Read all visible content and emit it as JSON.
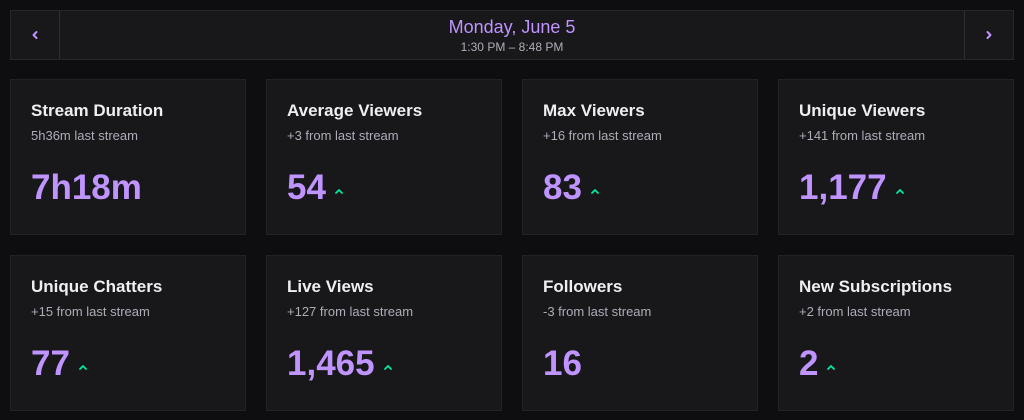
{
  "date_nav": {
    "title": "Monday, June 5",
    "time_range": "1:30 PM – 8:48 PM"
  },
  "colors": {
    "accent": "#bf94ff",
    "trend_up": "#00e8a2",
    "card_bg": "#18181b",
    "page_bg": "#0e0e10"
  },
  "cards": [
    {
      "title": "Stream Duration",
      "subtitle": "5h36m last stream",
      "value": "7h18m",
      "trend": "none"
    },
    {
      "title": "Average Viewers",
      "subtitle": "+3 from last stream",
      "value": "54",
      "trend": "up"
    },
    {
      "title": "Max Viewers",
      "subtitle": "+16 from last stream",
      "value": "83",
      "trend": "up"
    },
    {
      "title": "Unique Viewers",
      "subtitle": "+141 from last stream",
      "value": "1,177",
      "trend": "up"
    },
    {
      "title": "Unique Chatters",
      "subtitle": "+15 from last stream",
      "value": "77",
      "trend": "up"
    },
    {
      "title": "Live Views",
      "subtitle": "+127 from last stream",
      "value": "1,465",
      "trend": "up"
    },
    {
      "title": "Followers",
      "subtitle": "-3 from last stream",
      "value": "16",
      "trend": "none"
    },
    {
      "title": "New Subscriptions",
      "subtitle": "+2 from last stream",
      "value": "2",
      "trend": "up"
    }
  ]
}
